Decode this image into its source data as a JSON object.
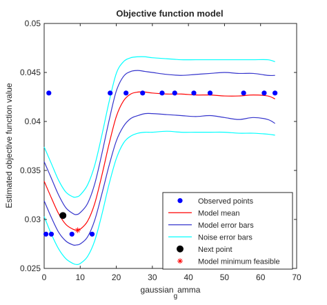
{
  "chart_data": {
    "type": "line",
    "title": "Objective function model",
    "xlabel_main": "gaussian",
    "xlabel_sub": "g",
    "xlabel_tail": "amma",
    "ylabel": "Estimated objective function value",
    "xlim": [
      0,
      70
    ],
    "ylim": [
      0.025,
      0.05
    ],
    "xticks": [
      0,
      10,
      20,
      30,
      40,
      50,
      60,
      70
    ],
    "xtick_labels": [
      "0",
      "10",
      "20",
      "30",
      "40",
      "50",
      "60",
      "70"
    ],
    "yticks": [
      0.025,
      0.03,
      0.035,
      0.04,
      0.045,
      0.05
    ],
    "ytick_labels": [
      "0.025",
      "0.03",
      "0.035",
      "0.04",
      "0.045",
      "0.05"
    ],
    "grid": false,
    "legend_position": "bottom-right",
    "series": [
      {
        "name": "Observed points",
        "style": "markers",
        "color": "#0000ff",
        "x": [
          0.5,
          1.3,
          2,
          7.7,
          13.3,
          18.3,
          22.7,
          27.3,
          32.7,
          36.2,
          41.5,
          46,
          55.3,
          61,
          64
        ],
        "y": [
          0.0285,
          0.0429,
          0.0285,
          0.0285,
          0.0285,
          0.0429,
          0.0429,
          0.0429,
          0.0429,
          0.0429,
          0.0429,
          0.0429,
          0.0429,
          0.0429,
          0.0429
        ]
      },
      {
        "name": "Model mean",
        "style": "line",
        "color": "#ff0000",
        "x": [
          0,
          2,
          4,
          6,
          8,
          9,
          10,
          12,
          14,
          16,
          18,
          20,
          22,
          24,
          26,
          28,
          30,
          34,
          38,
          42,
          46,
          50,
          54,
          58,
          62,
          64
        ],
        "y": [
          0.0339,
          0.0322,
          0.0306,
          0.0295,
          0.029,
          0.0289,
          0.029,
          0.0298,
          0.0316,
          0.0345,
          0.0377,
          0.0405,
          0.0421,
          0.0428,
          0.043,
          0.043,
          0.0429,
          0.0428,
          0.0428,
          0.0427,
          0.0427,
          0.0426,
          0.0426,
          0.0427,
          0.0426,
          0.0423
        ]
      },
      {
        "name": "Model error bars",
        "style": "line",
        "color": "#3333cc",
        "x": [
          0,
          2,
          4,
          6,
          8,
          9,
          10,
          12,
          14,
          16,
          18,
          20,
          22,
          24,
          26,
          28,
          30,
          34,
          38,
          42,
          46,
          50,
          54,
          58,
          62,
          64
        ],
        "y": [
          0.0359,
          0.0342,
          0.0325,
          0.0312,
          0.0306,
          0.0305,
          0.0307,
          0.0316,
          0.0336,
          0.0367,
          0.0401,
          0.0431,
          0.0446,
          0.0451,
          0.0452,
          0.0451,
          0.045,
          0.0448,
          0.0447,
          0.0448,
          0.0449,
          0.045,
          0.0449,
          0.0449,
          0.0447,
          0.0447
        ]
      },
      {
        "name": "",
        "style": "line",
        "color": "#3333cc",
        "x": [
          0,
          2,
          4,
          6,
          8,
          9,
          10,
          12,
          14,
          16,
          18,
          20,
          22,
          24,
          26,
          28,
          30,
          34,
          38,
          42,
          46,
          50,
          54,
          58,
          62,
          64
        ],
        "y": [
          0.0319,
          0.0302,
          0.0287,
          0.0278,
          0.0274,
          0.0274,
          0.0275,
          0.0282,
          0.0299,
          0.0326,
          0.0355,
          0.038,
          0.0395,
          0.0403,
          0.0406,
          0.0408,
          0.0408,
          0.0407,
          0.0406,
          0.0405,
          0.0406,
          0.0404,
          0.0402,
          0.0404,
          0.0402,
          0.0398
        ]
      },
      {
        "name": "Noise error bars",
        "style": "line",
        "color": "#00ffff",
        "x": [
          0,
          2,
          4,
          6,
          8,
          9,
          10,
          12,
          14,
          16,
          18,
          20,
          22,
          24,
          26,
          28,
          30,
          34,
          38,
          42,
          46,
          50,
          54,
          58,
          62,
          64
        ],
        "y": [
          0.0374,
          0.0357,
          0.034,
          0.0328,
          0.0323,
          0.0323,
          0.0325,
          0.0335,
          0.0355,
          0.0386,
          0.042,
          0.0449,
          0.0461,
          0.0465,
          0.0466,
          0.0466,
          0.0465,
          0.0464,
          0.0463,
          0.0463,
          0.0463,
          0.0463,
          0.0463,
          0.0463,
          0.0463,
          0.0461
        ]
      },
      {
        "name": "",
        "style": "line",
        "color": "#00ffff",
        "x": [
          0,
          2,
          4,
          6,
          8,
          9,
          10,
          12,
          14,
          16,
          18,
          20,
          22,
          24,
          26,
          28,
          30,
          34,
          38,
          42,
          46,
          50,
          54,
          58,
          62,
          64
        ],
        "y": [
          0.0303,
          0.0285,
          0.027,
          0.026,
          0.0255,
          0.0254,
          0.0255,
          0.0262,
          0.0278,
          0.0305,
          0.0336,
          0.0362,
          0.0378,
          0.0385,
          0.0388,
          0.0389,
          0.0389,
          0.039,
          0.0389,
          0.0389,
          0.0389,
          0.0389,
          0.0388,
          0.0388,
          0.0387,
          0.0386
        ]
      },
      {
        "name": "Next point",
        "style": "markers",
        "color": "#000000",
        "x": [
          5.2
        ],
        "y": [
          0.0304
        ]
      },
      {
        "name": "Model minimum feasible",
        "style": "star",
        "color": "#ff0000",
        "x": [
          9.3
        ],
        "y": [
          0.0289
        ]
      }
    ]
  }
}
